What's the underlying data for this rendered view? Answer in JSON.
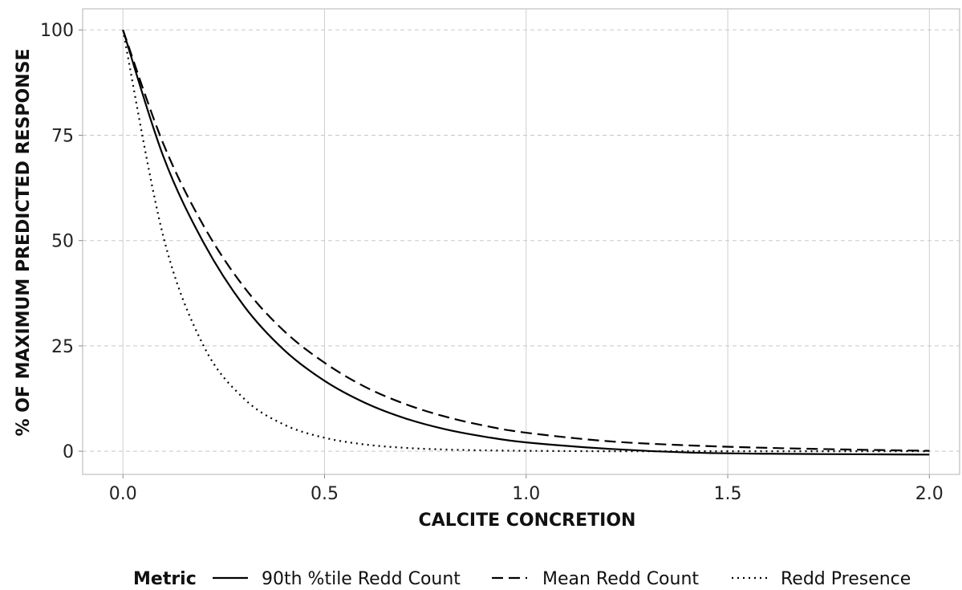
{
  "chart_data": {
    "type": "line",
    "xlabel": "CALCITE CONCRETION",
    "ylabel": "% OF MAXIMUM PREDICTED RESPONSE",
    "xlim": [
      -0.1,
      2.075
    ],
    "ylim": [
      -5.5,
      105
    ],
    "x_ticks": [
      0.0,
      0.5,
      1.0,
      1.5,
      2.0
    ],
    "x_tick_labels": [
      "0.0",
      "0.5",
      "1.0",
      "1.5",
      "2.0"
    ],
    "y_ticks": [
      0,
      25,
      50,
      75,
      100
    ],
    "y_tick_labels": [
      "0",
      "25",
      "50",
      "75",
      "100"
    ],
    "grid": true,
    "legend": {
      "title": "Metric",
      "position": "bottom"
    },
    "x": [
      0.0,
      0.1,
      0.2,
      0.3,
      0.4,
      0.5,
      0.6,
      0.7,
      0.8,
      0.9,
      1.0,
      1.2,
      1.4,
      1.6,
      1.8,
      2.0
    ],
    "series": [
      {
        "name": "90th %tile Redd Count",
        "line_style": "solid",
        "values": [
          100,
          70,
          49.5,
          34.5,
          24,
          16.7,
          11.5,
          7.8,
          5.2,
          3.4,
          2.1,
          0.6,
          -0.3,
          -0.6,
          -0.7,
          -0.8
        ]
      },
      {
        "name": "Mean Redd Count",
        "line_style": "dashed",
        "values": [
          100,
          73,
          53.5,
          39,
          28.5,
          21,
          15.3,
          11.2,
          8.2,
          6,
          4.4,
          2.4,
          1.4,
          0.8,
          0.4,
          0.1
        ]
      },
      {
        "name": "Redd Presence",
        "line_style": "dotted",
        "values": [
          100,
          51,
          25,
          12.5,
          6.3,
          3.2,
          1.6,
          0.8,
          0.4,
          0.2,
          0.1,
          0.0,
          0.0,
          0.0,
          0.0,
          0.0
        ]
      }
    ]
  }
}
